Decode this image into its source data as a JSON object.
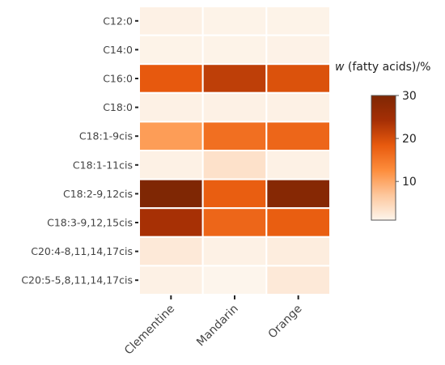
{
  "chart_data": {
    "type": "heatmap",
    "title": "",
    "xlabel": "",
    "ylabel": "",
    "categories_x": [
      "Clementine",
      "Mandarin",
      "Orange"
    ],
    "categories_y": [
      "C12:0",
      "C14:0",
      "C16:0",
      "C18:0",
      "C18:1-9cis",
      "C18:1-11cis",
      "C18:2-9,12cis",
      "C18:3-9,12,15cis",
      "C20:4-8,11,14,17cis",
      "C20:5-5,8,11,14,17cis"
    ],
    "values": [
      [
        1.5,
        1.3,
        1.3
      ],
      [
        1.3,
        1.3,
        1.4
      ],
      [
        18.5,
        22,
        19.5
      ],
      [
        1.5,
        1.5,
        1.5
      ],
      [
        11,
        16,
        17
      ],
      [
        1.5,
        3.5,
        1.5
      ],
      [
        30,
        18,
        29
      ],
      [
        24,
        17,
        18
      ],
      [
        2.5,
        1.5,
        2
      ],
      [
        1.5,
        1,
        2.5
      ]
    ],
    "colorbar": {
      "title_var": "w",
      "title_rest": " (fatty acids)/%",
      "min": 1,
      "max": 30,
      "ticks": [
        10,
        20,
        30
      ],
      "colors": [
        "#fdf5ec",
        "#fdc79d",
        "#fd8d3c",
        "#e85a0e",
        "#a52f05",
        "#7f2704"
      ]
    }
  }
}
